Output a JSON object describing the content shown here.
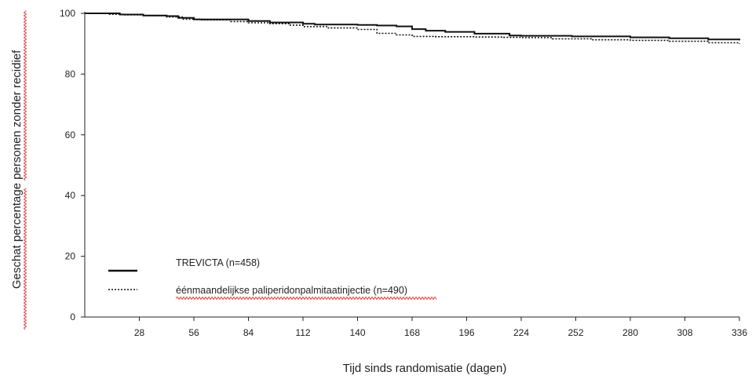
{
  "chart_data": {
    "type": "line",
    "xlabel": "Tijd sinds randomisatie  (dagen)",
    "ylabel": "Geschat percentage  personen zonder recidief",
    "xlim": [
      0,
      336
    ],
    "ylim": [
      0,
      100
    ],
    "xticks": [
      28,
      56,
      84,
      112,
      140,
      168,
      196,
      224,
      252,
      280,
      308,
      336
    ],
    "yticks": [
      0,
      20,
      40,
      60,
      80,
      100
    ],
    "grid": false,
    "legend_position": "bottom-left",
    "series": [
      {
        "name": "TREVICTA (n=458)",
        "line_style": "solid",
        "color": "#111111",
        "x": [
          0,
          14,
          18,
          30,
          42,
          48,
          56,
          70,
          84,
          95,
          112,
          118,
          140,
          150,
          160,
          168,
          175,
          185,
          200,
          218,
          224,
          250,
          280,
          300,
          320,
          336
        ],
        "y": [
          100,
          100,
          99.6,
          99.3,
          99.1,
          98.5,
          98,
          98,
          97.5,
          97,
          96.6,
          96.3,
          96.2,
          96,
          95.7,
          94.8,
          94.3,
          93.9,
          93.3,
          92.7,
          92.6,
          92.4,
          92.1,
          91.8,
          91.4,
          91.1
        ]
      },
      {
        "name": "éénmaandelijkse paliperidonpalmitaatinjectie (n=490)",
        "line_style": "dotted",
        "color": "#111111",
        "x": [
          0,
          12,
          20,
          30,
          42,
          50,
          60,
          75,
          84,
          95,
          105,
          112,
          125,
          140,
          150,
          160,
          168,
          180,
          200,
          215,
          224,
          240,
          260,
          280,
          300,
          320,
          336
        ],
        "y": [
          100,
          99.7,
          99.5,
          99.2,
          98.8,
          98.1,
          97.8,
          97.3,
          96.9,
          96.6,
          96.1,
          95.6,
          95.2,
          94.7,
          93.4,
          92.9,
          92.4,
          92.3,
          92.2,
          92.1,
          92,
          91.6,
          91.3,
          91.1,
          90.8,
          90.3,
          90
        ]
      }
    ]
  }
}
